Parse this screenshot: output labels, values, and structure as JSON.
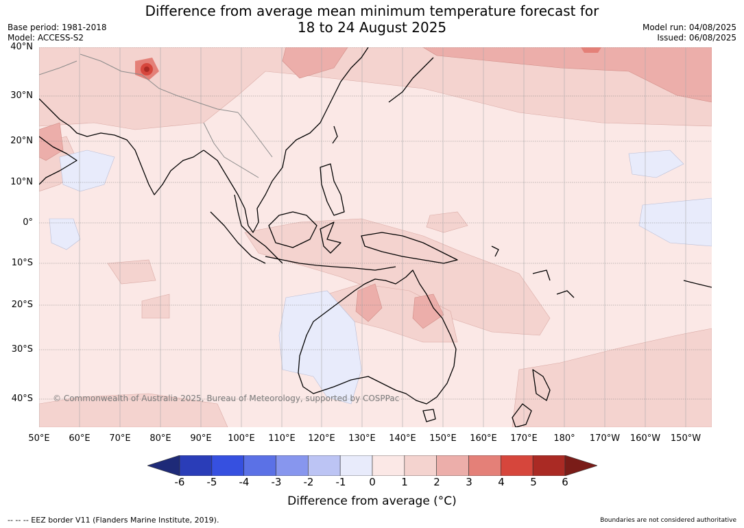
{
  "title_line1": "Difference from average mean minimum temperature forecast for",
  "title_line2": "18 to 24 August 2025",
  "base_period": "Base period: 1981-2018",
  "model": "Model: ACCESS-S2",
  "model_run": "Model run: 04/08/2025",
  "issued": "Issued: 06/08/2025",
  "lat_labels": [
    "40°N",
    "30°N",
    "20°N",
    "10°N",
    "0°",
    "10°S",
    "20°S",
    "30°S",
    "40°S"
  ],
  "lon_labels": [
    "50°E",
    "60°E",
    "70°E",
    "80°E",
    "90°E",
    "100°E",
    "110°E",
    "120°E",
    "130°E",
    "140°E",
    "150°E",
    "160°E",
    "170°E",
    "180°",
    "170°W",
    "160°W",
    "150°W"
  ],
  "colorbar": {
    "title": "Difference from average (°C)",
    "tick_labels": [
      "-6",
      "-5",
      "-4",
      "-3",
      "-2",
      "-1",
      "0",
      "1",
      "2",
      "3",
      "4",
      "5",
      "6"
    ],
    "colors": [
      "#1e2a78",
      "#2a3db8",
      "#3650e0",
      "#5b71e6",
      "#8796ee",
      "#bcc4f4",
      "#e8ebfb",
      "#fbe8e6",
      "#f4d3cf",
      "#ecaeaa",
      "#e48078",
      "#d6463c",
      "#aa2a24",
      "#7a1c18"
    ]
  },
  "copyright": "© Commonwealth of Australia 2025, Bureau of Meteorology, supported by COSPPac",
  "footer_left": "--  --  -- EEZ border V11 (Flanders Marine Institute, 2019).",
  "footer_right": "Boundaries are not considered authoritative"
}
